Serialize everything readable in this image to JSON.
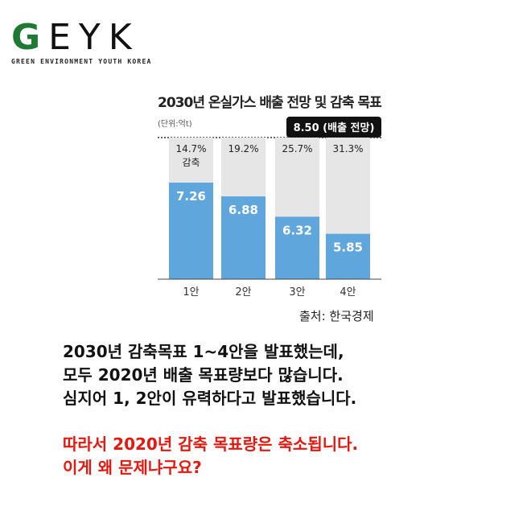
{
  "logo": {
    "main_first": "G",
    "main_rest": "EYK",
    "subtitle": "GREEN ENVIRONMENT YOUTH KOREA",
    "brand_color": "#1e7a33"
  },
  "chart_data": {
    "type": "bar",
    "title": "2030년 온실가스 배출 전망 및 감축 목표",
    "unit_label": "(단위:억t)",
    "reference_label": "8.50 (배출 전망)",
    "reference_value": 8.5,
    "categories": [
      "1안",
      "2안",
      "3안",
      "4안"
    ],
    "values": [
      7.26,
      6.88,
      6.32,
      5.85
    ],
    "value_labels": [
      "7.26",
      "6.88",
      "6.32",
      "5.85"
    ],
    "reduction_labels": [
      "14.7%",
      "19.2%",
      "25.7%",
      "31.3%"
    ],
    "reduction_suffix": "감축",
    "ylim": [
      4.6,
      8.5
    ],
    "colors": {
      "bar": "#5fa6dc",
      "background_bar": "#e6e6e6"
    }
  },
  "source": "출처: 한국경제",
  "text": {
    "lines": [
      "2030년 감축목표 1~4안을 발표했는데,",
      "모두 2020년 배출 목표량보다 많습니다.",
      "심지어 1, 2안이 유력하다고 발표했습니다."
    ],
    "red_lines": [
      "따라서 2020년 감축 목표량은 축소됩니다.",
      "이게 왜 문제냐구요?"
    ],
    "red_color": "#e8160c"
  }
}
